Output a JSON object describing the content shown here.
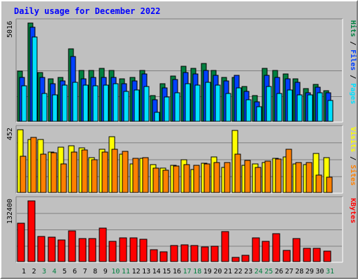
{
  "title": "Daily usage for December 2022",
  "colors": {
    "background": "#c0c0c0",
    "plot": "#c0c0c0",
    "title": "#0000ff",
    "hits": "#008040",
    "files": "#0040ff",
    "pages": "#00e0ff",
    "visits": "#ffff00",
    "sites": "#ff8000",
    "kbytes": "#ff0000",
    "weekend_label": "#008040",
    "weekday_label": "#000000"
  },
  "chart_data": [
    {
      "type": "bar",
      "name": "hits-files-pages",
      "scale_label": "5016",
      "ymax": 5016,
      "legend": [
        "Pages",
        "Files",
        "Hits"
      ],
      "series": [
        {
          "name": "Hits",
          "values": [
            2570,
            5016,
            2500,
            2200,
            2270,
            3700,
            2630,
            2630,
            2720,
            2630,
            2200,
            2270,
            2630,
            1350,
            1950,
            2340,
            2810,
            2720,
            2980,
            2630,
            2270,
            2270,
            1810,
            1350,
            2720,
            2630,
            2450,
            2180,
            1700,
            1900,
            1590
          ]
        },
        {
          "name": "Files",
          "values": [
            2270,
            4800,
            2270,
            1950,
            2100,
            3310,
            2200,
            2270,
            2270,
            2270,
            1950,
            2100,
            2440,
            1130,
            1720,
            2170,
            2520,
            2440,
            2630,
            2360,
            2100,
            2360,
            1550,
            1010,
            2360,
            2270,
            2180,
            2020,
            1470,
            1750,
            1470
          ]
        },
        {
          "name": "Pages",
          "values": [
            1820,
            4300,
            1460,
            1380,
            1860,
            2020,
            1860,
            1840,
            1860,
            1960,
            1550,
            1630,
            1810,
            500,
            1270,
            1470,
            1930,
            1860,
            2020,
            1860,
            1460,
            1730,
            1120,
            760,
            1810,
            1460,
            1630,
            1380,
            1380,
            1480,
            1100
          ]
        }
      ]
    },
    {
      "type": "bar",
      "name": "visits-sites",
      "scale_label": "452",
      "ymax": 452,
      "legend": [
        "Sites",
        "Visits"
      ],
      "series": [
        {
          "name": "Visits",
          "values": [
            452,
            380,
            380,
            295,
            330,
            340,
            325,
            255,
            315,
            400,
            280,
            210,
            250,
            205,
            180,
            200,
            240,
            170,
            215,
            260,
            185,
            445,
            200,
            210,
            220,
            250,
            260,
            210,
            205,
            285,
            255
          ]
        },
        {
          "name": "Sites",
          "values": [
            265,
            395,
            280,
            290,
            210,
            295,
            310,
            240,
            295,
            315,
            300,
            250,
            255,
            180,
            165,
            195,
            205,
            200,
            210,
            220,
            220,
            280,
            235,
            185,
            230,
            245,
            315,
            220,
            220,
            130,
            115
          ]
        }
      ]
    },
    {
      "type": "bar",
      "name": "kbytes",
      "scale_label": "132400",
      "ymax": 132400,
      "legend": [
        "KBytes"
      ],
      "series": [
        {
          "name": "KBytes",
          "values": [
            85000,
            132400,
            55700,
            54000,
            48000,
            68000,
            50800,
            51200,
            73200,
            45800,
            52300,
            52300,
            49000,
            27300,
            23200,
            35500,
            37500,
            35500,
            32700,
            35000,
            66700,
            10500,
            15700,
            52500,
            45800,
            61500,
            26000,
            50800,
            30000,
            30000,
            24500
          ]
        }
      ]
    }
  ],
  "days": [
    "1",
    "2",
    "3",
    "4",
    "5",
    "6",
    "7",
    "8",
    "9",
    "10",
    "11",
    "12",
    "13",
    "14",
    "15",
    "16",
    "17",
    "18",
    "19",
    "20",
    "21",
    "22",
    "23",
    "24",
    "25",
    "26",
    "27",
    "28",
    "29",
    "30",
    "31"
  ],
  "weekend_days": [
    3,
    4,
    10,
    11,
    17,
    18,
    24,
    25,
    31
  ]
}
